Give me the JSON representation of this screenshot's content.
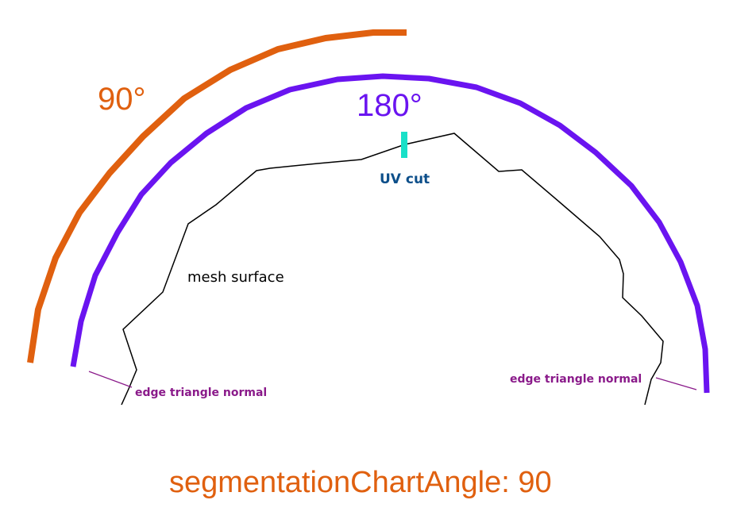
{
  "labels": {
    "angle_90": "90°",
    "angle_180": "180°",
    "uv_cut": "UV cut",
    "mesh_surface": "mesh surface",
    "edge_normal_left": "edge triangle normal",
    "edge_normal_right": "edge triangle normal",
    "footer": "segmentationChartAngle: 90"
  },
  "colors": {
    "orange": "#e0600f",
    "purple": "#6a14f0",
    "cyan": "#19e0c8",
    "navy": "#0d4f8a",
    "magenta": "#8a1a8a",
    "black": "#000000"
  }
}
